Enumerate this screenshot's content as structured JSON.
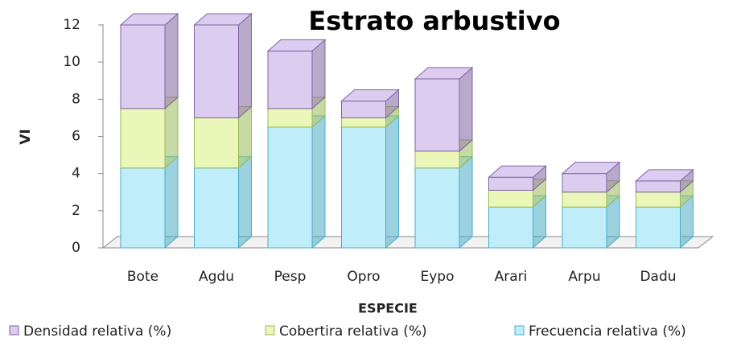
{
  "chart_data": {
    "type": "bar3d_stacked",
    "title": "Estrato arbustivo",
    "x_label": "ESPECIE",
    "y_label": "VI",
    "categories": [
      "Bote",
      "Agdu",
      "Pesp",
      "Opro",
      "Eypo",
      "Arari",
      "Arpu",
      "Dadu"
    ],
    "series": [
      {
        "name": "Densidad relativa (%)",
        "color": "#dccdf0",
        "edge": "#8064a2",
        "values": [
          4.5,
          5.0,
          3.1,
          0.9,
          3.9,
          0.7,
          1.0,
          0.6
        ]
      },
      {
        "name": "Cobertira relativa (%)",
        "color": "#eaf7b8",
        "edge": "#9bbb59",
        "values": [
          3.2,
          2.7,
          1.0,
          0.5,
          0.9,
          0.9,
          0.8,
          0.8
        ]
      },
      {
        "name": "Frecuencia relativa (%)",
        "color": "#bfeefa",
        "edge": "#4bacc6",
        "values": [
          4.3,
          4.3,
          6.5,
          6.5,
          4.3,
          2.2,
          2.2,
          2.2
        ]
      }
    ],
    "ylim": [
      0,
      12
    ],
    "yticks": [
      0,
      2,
      4,
      6,
      8,
      10,
      12
    ],
    "legend": "bottom"
  }
}
